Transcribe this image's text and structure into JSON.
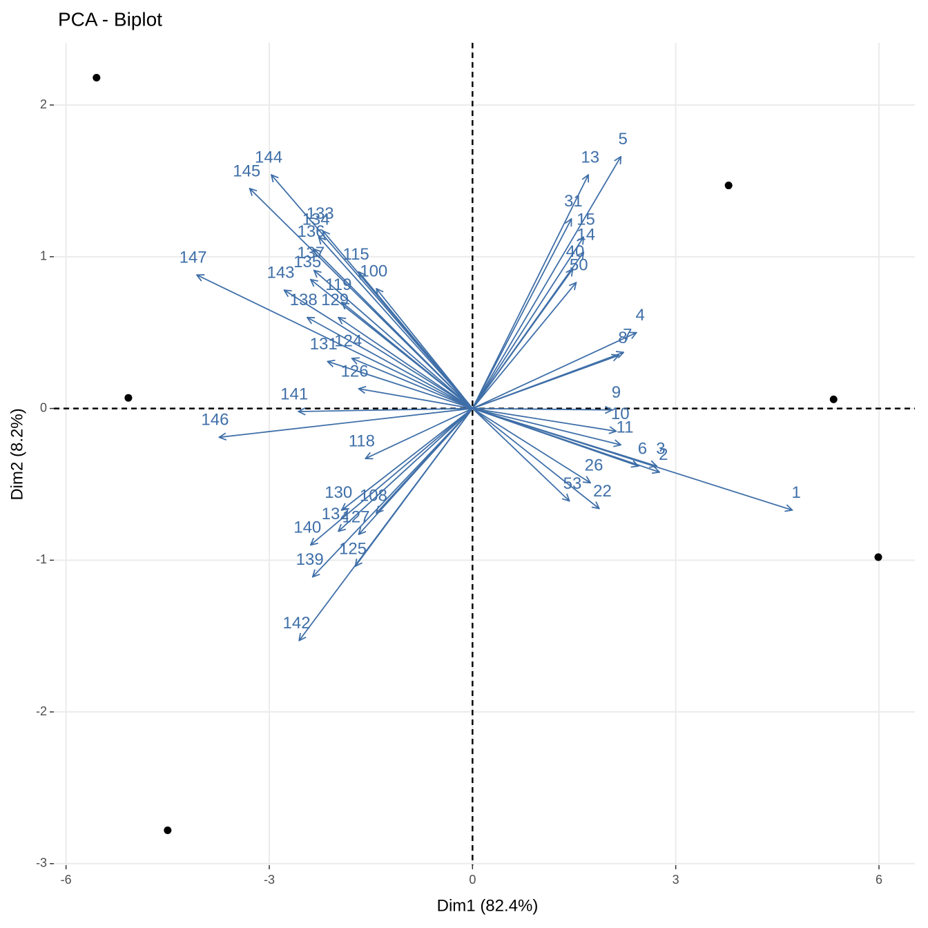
{
  "chart_data": {
    "type": "biplot",
    "title": "PCA - Biplot",
    "xlabel": "Dim1 (82.4%)",
    "ylabel": "Dim2 (8.2%)",
    "xlim": [
      -6.18,
      6.53
    ],
    "ylim": [
      -3.01,
      2.41
    ],
    "xticks": [
      -6,
      -3,
      0,
      3,
      6
    ],
    "yticks": [
      -3,
      -2,
      -1,
      0,
      1,
      2
    ],
    "grid": true,
    "point_color": "#000000",
    "arrow_color": "#3F6FA8",
    "points": {
      "x": [
        -5.55,
        -5.08,
        -4.5,
        3.78,
        5.33,
        5.99
      ],
      "y": [
        2.18,
        0.07,
        -2.78,
        1.47,
        0.06,
        -0.98
      ]
    },
    "vectors": {
      "labels": [
        "1",
        "2",
        "3",
        "4",
        "5",
        "6",
        "7",
        "8",
        "9",
        "10",
        "11",
        "13",
        "14",
        "15",
        "22",
        "26",
        "31",
        "40",
        "50",
        "53",
        "144",
        "145",
        "147",
        "146",
        "141",
        "142",
        "139",
        "140",
        "143",
        "133",
        "134",
        "136",
        "137",
        "135",
        "138",
        "115",
        "100",
        "119",
        "129",
        "131",
        "124",
        "126",
        "118",
        "130",
        "132",
        "127",
        "125",
        "108"
      ],
      "x": [
        4.72,
        2.76,
        2.72,
        2.42,
        2.19,
        2.45,
        2.23,
        2.16,
        2.06,
        2.12,
        2.19,
        1.71,
        1.64,
        1.64,
        1.87,
        1.74,
        1.46,
        1.48,
        1.53,
        1.43,
        -2.97,
        -3.29,
        -4.07,
        -3.74,
        -2.57,
        -2.56,
        -2.36,
        -2.39,
        -2.78,
        -2.21,
        -2.27,
        -2.34,
        -2.34,
        -2.39,
        -2.44,
        -1.68,
        -1.42,
        -1.93,
        -1.98,
        -2.14,
        -1.78,
        -1.68,
        -1.58,
        -1.93,
        -1.98,
        -1.68,
        -1.73,
        -1.42
      ],
      "y": [
        -0.67,
        -0.42,
        -0.38,
        0.5,
        1.66,
        -0.38,
        0.37,
        0.35,
        -0.01,
        -0.15,
        -0.24,
        1.54,
        1.03,
        1.13,
        -0.66,
        -0.49,
        1.25,
        0.92,
        0.83,
        -0.61,
        1.54,
        1.45,
        0.88,
        -0.19,
        -0.02,
        -1.53,
        -1.11,
        -0.9,
        0.78,
        1.17,
        1.13,
        1.05,
        0.91,
        0.85,
        0.6,
        0.9,
        0.79,
        0.7,
        0.6,
        0.31,
        0.33,
        0.13,
        -0.33,
        -0.67,
        -0.81,
        -0.83,
        -1.04,
        -0.69
      ]
    }
  }
}
